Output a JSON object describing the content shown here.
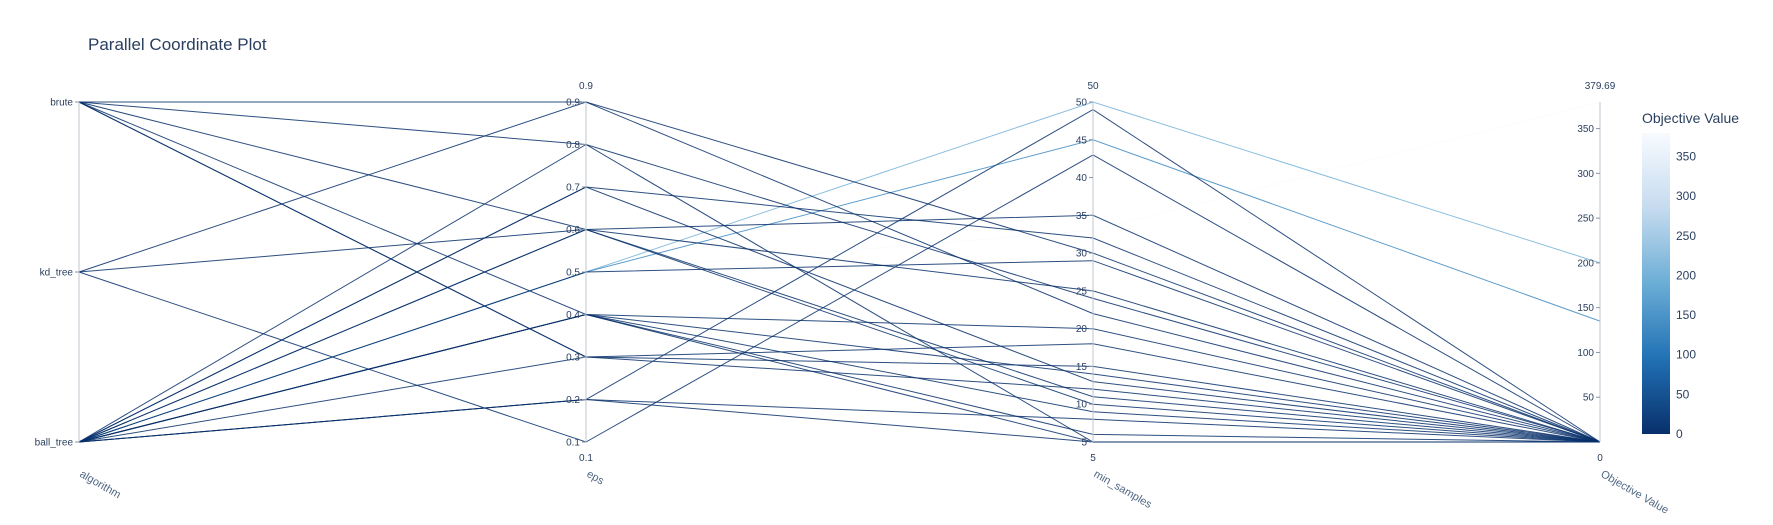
{
  "chart_data": {
    "type": "parallel_coordinates",
    "title": "Parallel Coordinate Plot",
    "dimensions": [
      {
        "label": "algorithm",
        "kind": "categorical",
        "categories": [
          "ball_tree",
          "kd_tree",
          "brute"
        ],
        "range": [
          0,
          2
        ],
        "top_label": "",
        "bottom_label": ""
      },
      {
        "label": "eps",
        "kind": "numeric",
        "range": [
          0.1,
          0.9
        ],
        "ticks": [
          0.1,
          0.2,
          0.3,
          0.4,
          0.5,
          0.6,
          0.7,
          0.8,
          0.9
        ],
        "tick_labels": [
          "0.1",
          "0.2",
          "0.3",
          "0.4",
          "0.5",
          "0.6",
          "0.7",
          "0.8",
          "0.9"
        ],
        "top_label": "0.9",
        "bottom_label": "0.1"
      },
      {
        "label": "min_samples",
        "kind": "numeric",
        "range": [
          5,
          50
        ],
        "ticks": [
          5,
          10,
          15,
          20,
          25,
          30,
          35,
          40,
          45,
          50
        ],
        "tick_labels": [
          "5",
          "10",
          "15",
          "20",
          "25",
          "30",
          "35",
          "40",
          "45",
          "50"
        ],
        "top_label": "50",
        "bottom_label": "5"
      },
      {
        "label": "Objective Value",
        "kind": "numeric",
        "range": [
          0,
          379.69
        ],
        "ticks": [
          50,
          100,
          150,
          200,
          250,
          300,
          350
        ],
        "tick_labels": [
          "50",
          "100",
          "150",
          "200",
          "250",
          "300",
          "350"
        ],
        "top_label": "379.69",
        "bottom_label": "0"
      }
    ],
    "colorbar": {
      "title": "Objective Value",
      "range": [
        0,
        379.69
      ],
      "ticks": [
        0,
        50,
        100,
        150,
        200,
        250,
        300,
        350
      ],
      "tick_labels": [
        "0",
        "50",
        "100",
        "150",
        "200",
        "250",
        "300",
        "350"
      ],
      "colorscale": [
        "#08306b",
        "#2171b5",
        "#6baed6",
        "#c6dbef",
        "#f7fbff"
      ]
    },
    "trials": [
      {
        "algorithm": "brute",
        "eps": 0.8,
        "min_samples": 5,
        "objective": 0
      },
      {
        "algorithm": "brute",
        "eps": 0.6,
        "min_samples": 10,
        "objective": 0
      },
      {
        "algorithm": "brute",
        "eps": 0.3,
        "min_samples": 12,
        "objective": 0
      },
      {
        "algorithm": "brute",
        "eps": 0.3,
        "min_samples": 15,
        "objective": 0
      },
      {
        "algorithm": "brute",
        "eps": 0.4,
        "min_samples": 20,
        "objective": 0
      },
      {
        "algorithm": "brute",
        "eps": 0.9,
        "min_samples": 30,
        "objective": 0
      },
      {
        "algorithm": "kd_tree",
        "eps": 0.9,
        "min_samples": 22,
        "objective": 0
      },
      {
        "algorithm": "kd_tree",
        "eps": 0.6,
        "min_samples": 35,
        "objective": 0
      },
      {
        "algorithm": "kd_tree",
        "eps": 0.1,
        "min_samples": 43,
        "objective": 0
      },
      {
        "algorithm": "ball_tree",
        "eps": 0.8,
        "min_samples": 24,
        "objective": 0
      },
      {
        "algorithm": "ball_tree",
        "eps": 0.7,
        "min_samples": 13,
        "objective": 0
      },
      {
        "algorithm": "ball_tree",
        "eps": 0.7,
        "min_samples": 32,
        "objective": 0
      },
      {
        "algorithm": "ball_tree",
        "eps": 0.6,
        "min_samples": 25,
        "objective": 0
      },
      {
        "algorithm": "ball_tree",
        "eps": 0.6,
        "min_samples": 11,
        "objective": 0
      },
      {
        "algorithm": "ball_tree",
        "eps": 0.5,
        "min_samples": 29,
        "objective": 0
      },
      {
        "algorithm": "ball_tree",
        "eps": 0.5,
        "min_samples": 50,
        "objective": 200
      },
      {
        "algorithm": "ball_tree",
        "eps": 0.5,
        "min_samples": 45,
        "objective": 135
      },
      {
        "algorithm": "ball_tree",
        "eps": 0.5,
        "min_samples": 33,
        "objective": 379.69
      },
      {
        "algorithm": "ball_tree",
        "eps": 0.4,
        "min_samples": 9,
        "objective": 0
      },
      {
        "algorithm": "ball_tree",
        "eps": 0.4,
        "min_samples": 14,
        "objective": 0
      },
      {
        "algorithm": "ball_tree",
        "eps": 0.4,
        "min_samples": 6,
        "objective": 0
      },
      {
        "algorithm": "ball_tree",
        "eps": 0.4,
        "min_samples": 5,
        "objective": 0
      },
      {
        "algorithm": "ball_tree",
        "eps": 0.3,
        "min_samples": 18,
        "objective": 0
      },
      {
        "algorithm": "ball_tree",
        "eps": 0.2,
        "min_samples": 8,
        "objective": 0
      },
      {
        "algorithm": "ball_tree",
        "eps": 0.2,
        "min_samples": 49,
        "objective": 0
      },
      {
        "algorithm": "ball_tree",
        "eps": 0.2,
        "min_samples": 5,
        "objective": 0
      }
    ]
  }
}
